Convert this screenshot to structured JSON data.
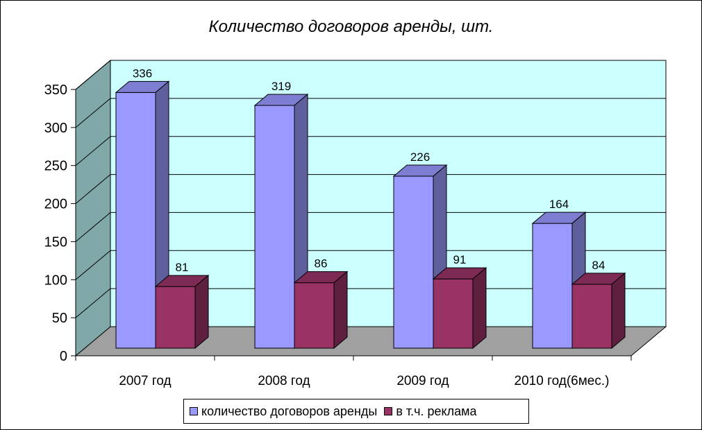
{
  "chart_data": {
    "type": "bar",
    "title": "Количество договоров аренды, шт.",
    "categories": [
      "2007 год",
      "2008 год",
      "2009 год",
      "2010 год(6мес.)"
    ],
    "series": [
      {
        "name": "количество договоров аренды",
        "values": [
          336,
          319,
          226,
          164
        ],
        "color": "#9999FF"
      },
      {
        "name": "в т.ч. реклама",
        "values": [
          81,
          86,
          91,
          84
        ],
        "color": "#993366"
      }
    ],
    "ylim": [
      0,
      350
    ],
    "yticks": [
      "0",
      "50",
      "100",
      "150",
      "200",
      "250",
      "300",
      "350"
    ],
    "grid": true,
    "legend_position": "bottom",
    "walls": {
      "back": "#CCFFFF",
      "side": "#80A8A8",
      "floor": "#A0A0A0"
    }
  }
}
